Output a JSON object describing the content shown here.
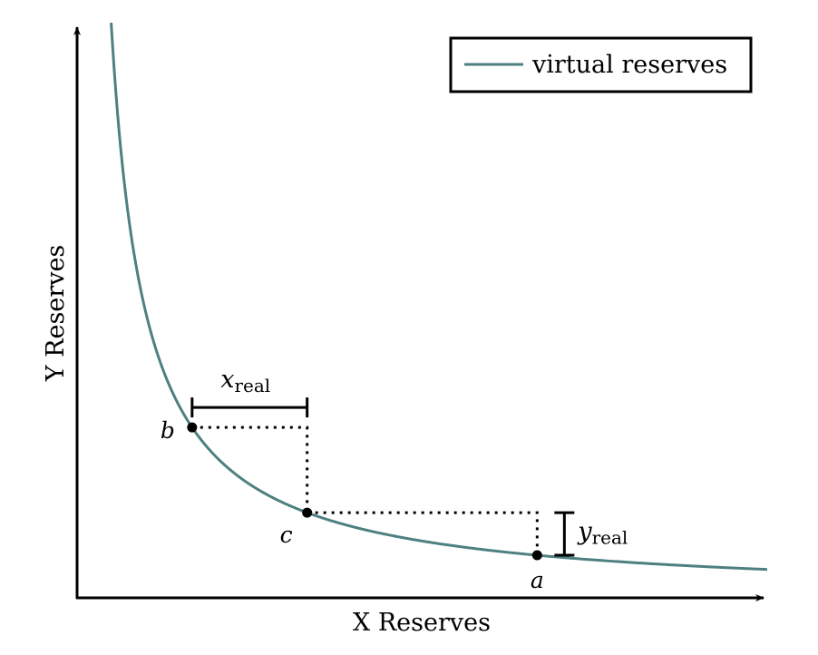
{
  "chart_data": {
    "type": "line",
    "xlabel": "X Reserves",
    "ylabel": "Y Reserves",
    "legend": {
      "position": "top-right",
      "entries": [
        "virtual reserves"
      ]
    },
    "series": [
      {
        "name": "virtual reserves",
        "color": "#4e8080",
        "k": 1,
        "curve": "constant product x*y = k"
      }
    ],
    "xlim": [
      0,
      4.5
    ],
    "ylim": [
      0,
      4.5
    ],
    "grid": false,
    "points": [
      {
        "label": "b",
        "x": 0.75,
        "y": 1.3333
      },
      {
        "label": "c",
        "x": 1.5,
        "y": 0.6667
      },
      {
        "label": "a",
        "x": 3.0,
        "y": 0.3333
      }
    ],
    "annotations": [
      {
        "symbol": "x",
        "subscript": "real",
        "from": "b",
        "to": "c",
        "direction": "horizontal"
      },
      {
        "symbol": "y",
        "subscript": "real",
        "from": "c",
        "to": "a",
        "direction": "vertical"
      }
    ]
  }
}
